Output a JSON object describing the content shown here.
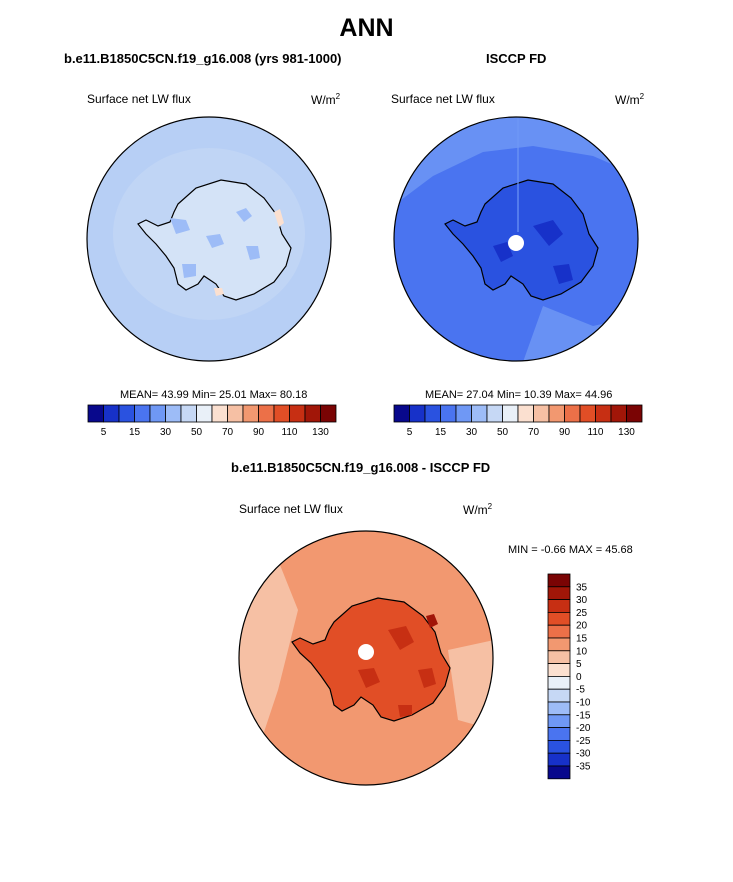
{
  "title": "ANN",
  "panels": [
    {
      "title": "b.e11.B1850C5CN.f19_g16.008 (yrs 981-1000)",
      "variable": "Surface net LW flux",
      "units": "W/m",
      "units_sup": "2",
      "stats": "MEAN=  43.99  Min=  25.01  Max=  80.18"
    },
    {
      "title": "ISCCP FD",
      "variable": "Surface net LW flux",
      "units": "W/m",
      "units_sup": "2",
      "stats": "MEAN=  27.04  Min=  10.39  Max=  44.96"
    },
    {
      "title": "b.e11.B1850C5CN.f19_g16.008 - ISCCP FD",
      "variable": "Surface net LW flux",
      "units": "W/m",
      "units_sup": "2",
      "stats": "MIN =  -0.66 MAX =  45.68"
    }
  ],
  "colorbar_main": {
    "colors": [
      "#08088c",
      "#1731c9",
      "#2a52e0",
      "#4a74f0",
      "#6f98f5",
      "#9dbcf7",
      "#c6d8f5",
      "#e9f0f8",
      "#fbe0d0",
      "#f6c0a4",
      "#f29870",
      "#ec7048",
      "#e14e26",
      "#c72f13",
      "#a11608",
      "#7a0404"
    ],
    "tick_labels": [
      "5",
      "15",
      "30",
      "50",
      "70",
      "90",
      "110",
      "130"
    ]
  },
  "colorbar_diff": {
    "colors": [
      "#7a0404",
      "#a11608",
      "#c72f13",
      "#e14e26",
      "#ec7048",
      "#f29870",
      "#f6c0a4",
      "#fbe0d0",
      "#e9f0f8",
      "#c6d8f5",
      "#9dbcf7",
      "#6f98f5",
      "#4a74f0",
      "#2a52e0",
      "#1731c9",
      "#08088c"
    ],
    "tick_labels": [
      "35",
      "30",
      "25",
      "20",
      "15",
      "10",
      "5",
      "0",
      "-5",
      "-10",
      "-15",
      "-20",
      "-25",
      "-30",
      "-35"
    ]
  },
  "map_colors": {
    "model_ocean": "#b7cff5",
    "model_land": "#d4e3f7",
    "obs_ocean": "#4a74f0",
    "obs_land": "#2a52e0",
    "diff_ocean": "#f29870",
    "diff_land": "#e14e26"
  }
}
